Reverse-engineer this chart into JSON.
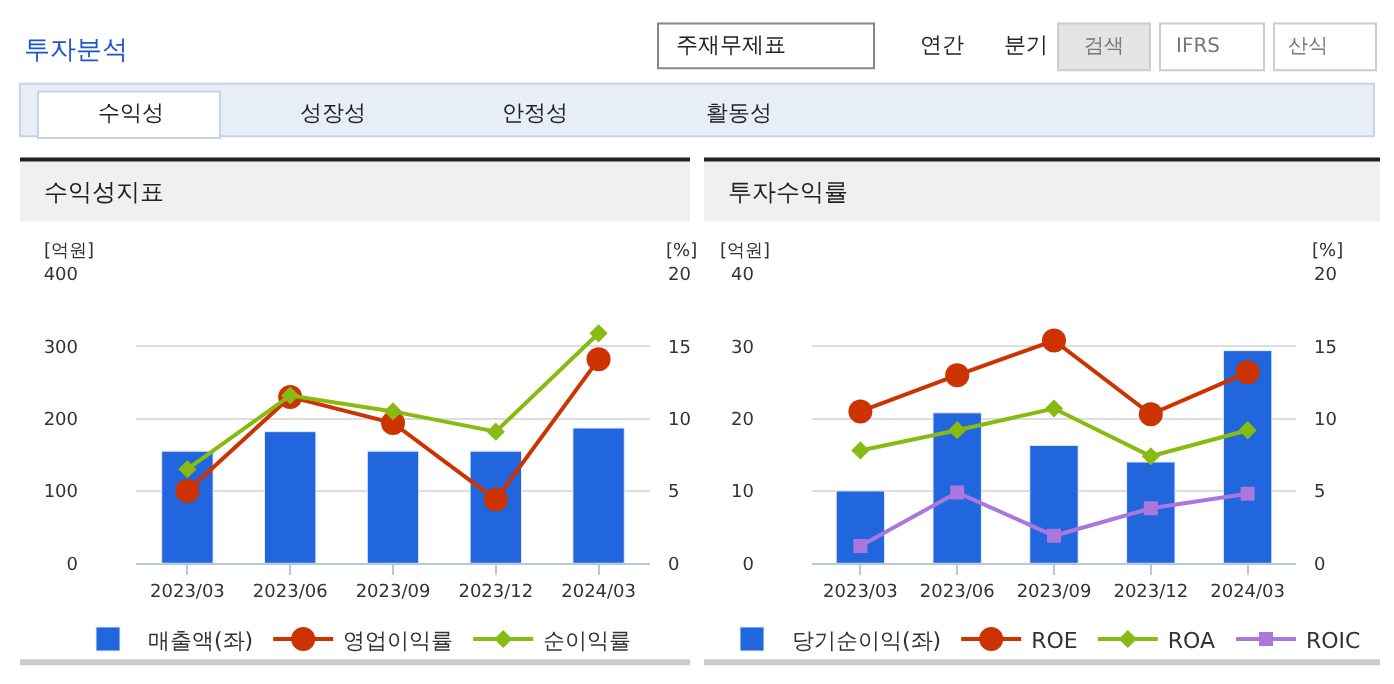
{
  "chart_data": [
    {
      "type": "bar",
      "title": "수익성지표",
      "ylabel": "[억원]",
      "y2label": "[%]",
      "annotations": [
        "투자분석",
        "주재무제표",
        "연간",
        "분기",
        "검색",
        "IFRS",
        "산식",
        "수익성",
        "성장성",
        "안정성",
        "활동성"
      ],
      "categories": [
        "2023/03",
        "2023/06",
        "2023/09",
        "2023/12",
        "2024/03"
      ],
      "series": [
        {
          "name": "매출액(좌)",
          "color": "#2266dd",
          "values": [
            155,
            182,
            155,
            155,
            187
          ]
        },
        {
          "name": "영업이익률",
          "type": "line",
          "axis": "y2",
          "marker": "circle",
          "color": "#cc3300",
          "values": [
            5.0,
            11.5,
            9.7,
            4.4,
            14.1
          ]
        },
        {
          "name": "순이익률",
          "type": "line",
          "axis": "y2",
          "marker": "diamond",
          "color": "#88bb11",
          "values": [
            6.5,
            11.6,
            10.5,
            9.1,
            15.9
          ]
        }
      ],
      "ylim": [
        0,
        400
      ],
      "yticks": [
        0,
        100,
        200,
        300,
        400
      ],
      "y2lim": [
        0,
        20
      ],
      "y2ticks": [
        0,
        5,
        10,
        15,
        20
      ],
      "grid": "y",
      "legend": "bottom"
    },
    {
      "type": "bar",
      "title": "투자수익률",
      "ylabel": "[억원]",
      "y2label": "[%]",
      "categories": [
        "2023/03",
        "2023/06",
        "2023/09",
        "2023/12",
        "2024/03"
      ],
      "series": [
        {
          "name": "당기순이익(좌)",
          "color": "#2266dd",
          "values": [
            10,
            20.8,
            16.3,
            14,
            29.4
          ]
        },
        {
          "name": "ROE",
          "type": "line",
          "axis": "y2",
          "marker": "circle",
          "color": "#cc3300",
          "values": [
            10.5,
            13.0,
            15.4,
            10.3,
            13.2
          ]
        },
        {
          "name": "ROA",
          "type": "line",
          "axis": "y2",
          "marker": "diamond",
          "color": "#88bb11",
          "values": [
            7.8,
            9.2,
            10.7,
            7.4,
            9.2
          ]
        },
        {
          "name": "ROIC",
          "type": "line",
          "axis": "y2",
          "marker": "square",
          "color": "#aa77dd",
          "values": [
            1.2,
            4.9,
            1.9,
            3.8,
            4.8
          ]
        }
      ],
      "ylim": [
        0,
        40
      ],
      "yticks": [
        0,
        10,
        20,
        30,
        40
      ],
      "y2lim": [
        0,
        20
      ],
      "y2ticks": [
        0,
        5,
        10,
        15,
        20
      ],
      "grid": "y",
      "legend": "bottom"
    }
  ]
}
